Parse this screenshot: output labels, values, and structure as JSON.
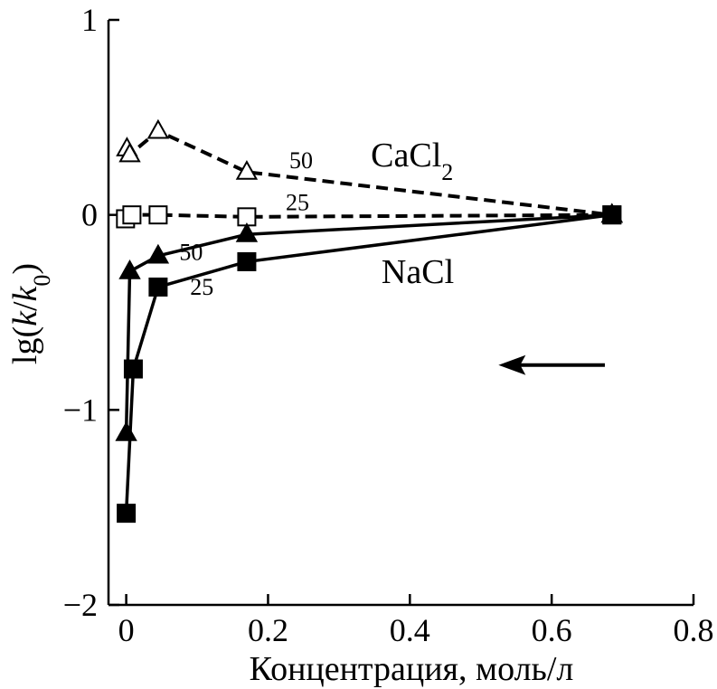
{
  "chart_data": {
    "type": "line",
    "xlabel": "Концентрация, моль/л",
    "ylabel_parts": {
      "prefix": "lg(",
      "k": "k",
      "slash": "/",
      "k0": "k",
      "sub": "0",
      "suffix": ")"
    },
    "xlim": [
      -0.025,
      0.8
    ],
    "ylim": [
      -2,
      1
    ],
    "x_ticks": [
      {
        "value": 0,
        "label": "0"
      },
      {
        "value": 0.2,
        "label": "0.2"
      },
      {
        "value": 0.4,
        "label": "0.4"
      },
      {
        "value": 0.6,
        "label": "0.6"
      },
      {
        "value": 0.8,
        "label": "0.8"
      }
    ],
    "y_ticks": [
      {
        "value": -2,
        "label": "−2"
      },
      {
        "value": -1,
        "label": "−1"
      },
      {
        "value": 0,
        "label": "0"
      },
      {
        "value": 1,
        "label": "1"
      }
    ],
    "grid": false,
    "colors": {
      "ink": "#000000",
      "hollow_fill": "#ffffff"
    },
    "series": [
      {
        "salt": "CaCl2",
        "temperature": "50",
        "marker": "triangle",
        "filled": false,
        "line": "dashed",
        "x": [
          0.001,
          0.005,
          0.045,
          0.17,
          0.685
        ],
        "y": [
          0.34,
          0.31,
          0.43,
          0.22,
          0.0
        ]
      },
      {
        "salt": "CaCl2",
        "temperature": "25",
        "marker": "square",
        "filled": false,
        "line": "dashed",
        "x": [
          -0.001,
          0.008,
          0.045,
          0.17,
          0.685
        ],
        "y": [
          -0.02,
          0.0,
          0.0,
          -0.01,
          0.0
        ]
      },
      {
        "salt": "NaCl",
        "temperature": "50",
        "marker": "triangle",
        "filled": true,
        "line": "solid",
        "x": [
          0.0,
          0.005,
          0.045,
          0.17,
          0.685
        ],
        "y": [
          -1.12,
          -0.29,
          -0.21,
          -0.1,
          0.0
        ]
      },
      {
        "salt": "NaCl",
        "temperature": "25",
        "marker": "square",
        "filled": true,
        "line": "solid",
        "x": [
          0.0,
          0.01,
          0.045,
          0.17,
          0.685
        ],
        "y": [
          -1.53,
          -0.79,
          -0.37,
          -0.24,
          0.0
        ]
      }
    ],
    "annotations": [
      {
        "id": "cacl2",
        "base": "CaCl",
        "sub": "2",
        "x": 0.345,
        "y": 0.25
      },
      {
        "id": "nacl",
        "text": "NaCl",
        "x": 0.36,
        "y": -0.35
      },
      {
        "id": "t50-cacl2",
        "text": "50",
        "x": 0.23,
        "y": 0.24
      },
      {
        "id": "t25-cacl2",
        "text": "25",
        "x": 0.225,
        "y": 0.025
      },
      {
        "id": "t50-nacl",
        "text": "50",
        "x": 0.075,
        "y": -0.23
      },
      {
        "id": "t25-nacl",
        "text": "25",
        "x": 0.09,
        "y": -0.41
      }
    ],
    "arrow": {
      "from": [
        0.675,
        -0.77
      ],
      "to": [
        0.525,
        -0.77
      ],
      "direction": "left"
    }
  }
}
